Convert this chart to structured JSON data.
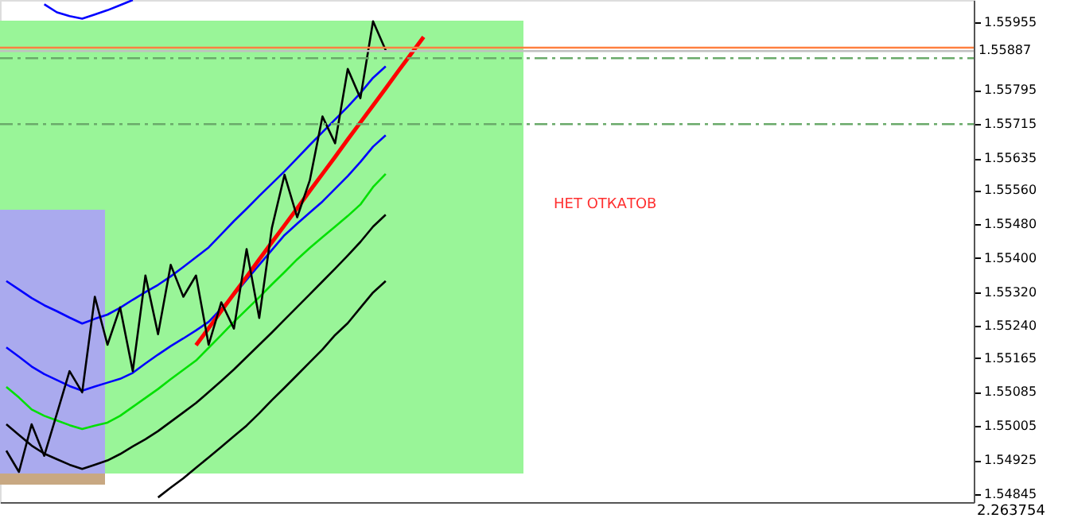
{
  "chart_data": {
    "type": "line",
    "ylim": [
      1.54826,
      1.56007
    ],
    "categories": [
      null,
      null,
      null,
      null,
      null,
      null,
      null,
      null,
      null,
      null,
      null,
      null,
      null,
      null,
      null,
      null,
      null,
      null,
      null,
      null,
      null,
      null,
      null,
      null,
      null,
      null,
      null,
      null,
      null,
      null,
      null,
      null,
      null,
      null,
      null,
      null,
      null,
      null,
      null,
      null,
      null,
      null,
      null,
      null,
      null,
      null,
      null,
      null,
      null,
      null,
      null,
      null,
      null,
      null,
      null,
      null,
      null,
      null,
      null,
      null,
      null,
      null,
      null,
      null,
      null,
      null,
      null,
      null,
      null,
      null,
      null,
      null,
      null,
      null,
      null,
      null,
      null
    ],
    "yticks": [
      1.55955,
      1.55795,
      1.55715,
      1.55635,
      {
        "value": 1.5556,
        "label": "1.55560"
      },
      {
        "value": 1.5548,
        "label": "1.55480"
      },
      {
        "value": 1.554,
        "label": "1.55400"
      },
      {
        "value": 1.5532,
        "label": "1.55320"
      },
      {
        "value": 1.5524,
        "label": "1.55240"
      },
      1.55165,
      1.55085,
      1.55005,
      1.54925,
      1.54845
    ],
    "tick_labels": "y",
    "grid": false,
    "series": [
      {
        "color": "#0000ff",
        "values": [
          null,
          null,
          null,
          1.55997,
          1.55978,
          1.55969,
          1.55963,
          1.55973,
          1.55983,
          1.55995,
          1.56007,
          null,
          null,
          null,
          null,
          null,
          null,
          null,
          null,
          null,
          null,
          null,
          null,
          null,
          null,
          null,
          null,
          null,
          null,
          null,
          null,
          null,
          null,
          null,
          null,
          null,
          null,
          null,
          null,
          null,
          null,
          null,
          null,
          null,
          null,
          null,
          null,
          null,
          null,
          null,
          null,
          null,
          null,
          null,
          null,
          null,
          null,
          null,
          null,
          null,
          null,
          null,
          null,
          null,
          null,
          null,
          null,
          null,
          null,
          null,
          null,
          null,
          null,
          null,
          null,
          null,
          null
        ]
      },
      {
        "color": "#0000ff",
        "values": [
          1.55346,
          1.55326,
          1.55306,
          1.55289,
          1.55275,
          1.5526,
          1.55246,
          1.55257,
          1.55267,
          1.55283,
          1.55302,
          1.5532,
          1.55337,
          1.55357,
          1.55379,
          1.55402,
          1.55425,
          1.55456,
          1.55487,
          1.55516,
          1.55546,
          1.55575,
          1.55604,
          1.55635,
          1.55666,
          1.55696,
          1.55726,
          1.55756,
          1.55788,
          1.55824,
          1.55851,
          null,
          null,
          null,
          null,
          null,
          null,
          null,
          null,
          null,
          null,
          null,
          null,
          null,
          null,
          null,
          null,
          null,
          null,
          null,
          null,
          null,
          null,
          null,
          null,
          null,
          null,
          null,
          null,
          null,
          null,
          null,
          null,
          null,
          null,
          null,
          null,
          null,
          null,
          null,
          null,
          null,
          null,
          null,
          null,
          null,
          null
        ]
      },
      {
        "color": "#0000ff",
        "values": [
          1.5519,
          1.55168,
          1.55145,
          1.55127,
          1.55113,
          1.55099,
          1.55088,
          1.55098,
          1.55107,
          1.55116,
          1.5513,
          1.55152,
          1.55173,
          1.55193,
          1.55211,
          1.5523,
          1.5525,
          1.55281,
          1.55313,
          1.55349,
          1.55384,
          1.55419,
          1.55454,
          1.55481,
          1.55507,
          1.55533,
          1.55563,
          1.55593,
          1.55626,
          1.55662,
          1.55689,
          null,
          null,
          null,
          null,
          null,
          null,
          null,
          null,
          null,
          null,
          null,
          null,
          null,
          null,
          null,
          null,
          null,
          null,
          null,
          null,
          null,
          null,
          null,
          null,
          null,
          null,
          null,
          null,
          null,
          null,
          null,
          null,
          null,
          null,
          null,
          null,
          null,
          null,
          null,
          null,
          null,
          null,
          null,
          null,
          null,
          null
        ]
      },
      {
        "color": "#00e000",
        "values": [
          1.55097,
          1.55072,
          1.55044,
          1.55029,
          1.55018,
          1.55007,
          1.54998,
          1.55006,
          1.55013,
          1.55029,
          1.5505,
          1.55071,
          1.55092,
          1.55115,
          1.55137,
          1.55159,
          1.55189,
          1.55219,
          1.5525,
          1.55279,
          1.55308,
          1.55338,
          1.55367,
          1.55397,
          1.55424,
          1.55449,
          1.55474,
          1.55499,
          1.55526,
          1.55567,
          1.55598,
          null,
          null,
          null,
          null,
          null,
          null,
          null,
          null,
          null,
          null,
          null,
          null,
          null,
          null,
          null,
          null,
          null,
          null,
          null,
          null,
          null,
          null,
          null,
          null,
          null,
          null,
          null,
          null,
          null,
          null,
          null,
          null,
          null,
          null,
          null,
          null,
          null,
          null,
          null,
          null,
          null,
          null,
          null,
          null,
          null,
          null
        ]
      },
      {
        "color": "#000000",
        "values": [
          1.55009,
          1.54984,
          1.54959,
          1.5494,
          1.54927,
          1.54914,
          1.54904,
          1.54914,
          1.54924,
          1.54939,
          1.54957,
          1.54974,
          1.54993,
          1.55015,
          1.55037,
          1.55059,
          1.55085,
          1.55111,
          1.55138,
          1.55167,
          1.55196,
          1.55225,
          1.55255,
          1.55285,
          1.55315,
          1.55345,
          1.55375,
          1.55406,
          1.55438,
          1.55474,
          1.55502,
          null,
          null,
          null,
          null,
          null,
          null,
          null,
          null,
          null,
          null,
          null,
          null,
          null,
          null,
          null,
          null,
          null,
          null,
          null,
          null,
          null,
          null,
          null,
          null,
          null,
          null,
          null,
          null,
          null,
          null,
          null,
          null,
          null,
          null,
          null,
          null,
          null,
          null,
          null,
          null,
          null,
          null,
          null,
          null,
          null,
          null
        ]
      },
      {
        "color": "#000000",
        "values": [
          null,
          null,
          null,
          null,
          null,
          null,
          null,
          null,
          null,
          null,
          null,
          null,
          1.54837,
          1.5486,
          1.54882,
          1.54907,
          1.54931,
          1.54956,
          1.54981,
          1.55006,
          1.55035,
          1.55066,
          1.55095,
          1.55125,
          1.55155,
          1.55185,
          1.55219,
          1.55247,
          1.55283,
          1.55319,
          1.55346,
          null,
          null,
          null,
          null,
          null,
          null,
          null,
          null,
          null,
          null,
          null,
          null,
          null,
          null,
          null,
          null,
          null,
          null,
          null,
          null,
          null,
          null,
          null,
          null,
          null,
          null,
          null,
          null,
          null,
          null,
          null,
          null,
          null,
          null,
          null,
          null,
          null,
          null,
          null,
          null,
          null,
          null,
          null,
          null,
          null,
          null
        ]
      },
      {
        "color": "#ff0000",
        "values": [
          null,
          null,
          null,
          null,
          null,
          null,
          null,
          null,
          null,
          null,
          null,
          null,
          null,
          null,
          null,
          1.55195,
          1.55235,
          1.55276,
          1.55316,
          1.55356,
          1.55397,
          1.55437,
          1.55477,
          1.55517,
          1.55558,
          1.55598,
          1.55638,
          1.55679,
          1.55719,
          1.55759,
          1.55799,
          1.5584,
          1.5588,
          1.5592,
          null,
          null,
          null,
          null,
          null,
          null,
          null,
          null,
          null,
          null,
          null,
          null,
          null,
          null,
          null,
          null,
          null,
          null,
          null,
          null,
          null,
          null,
          null,
          null,
          null,
          null,
          null,
          null,
          null,
          null,
          null,
          null,
          null,
          null,
          null,
          null,
          null,
          null,
          null,
          null,
          null,
          null,
          null
        ]
      },
      {
        "color": "#000000",
        "values": [
          1.54947,
          1.54897,
          1.55009,
          1.54935,
          1.55034,
          1.55134,
          1.55084,
          1.55309,
          1.55196,
          1.55284,
          1.55134,
          1.55359,
          1.55221,
          1.55384,
          1.55309,
          1.55359,
          1.55196,
          1.55296,
          1.55234,
          1.55421,
          1.55259,
          1.55471,
          1.55596,
          1.55496,
          1.55583,
          1.55733,
          1.5567,
          1.55845,
          1.55776,
          1.55957,
          1.55889,
          null,
          null,
          null,
          null,
          null,
          null,
          null,
          null,
          null,
          null,
          null,
          null,
          null,
          null,
          null,
          null,
          null,
          null,
          null,
          null,
          null,
          null,
          null,
          null,
          null,
          null,
          null,
          null,
          null,
          null,
          null,
          null,
          null,
          null,
          null,
          null,
          null,
          null,
          null,
          null,
          null,
          null,
          null,
          null,
          null,
          null
        ]
      }
    ],
    "ref_lines": [
      {
        "axis": "y",
        "value": 1.55895,
        "color": "#ff8040",
        "line_style": "solid"
      },
      {
        "axis": "y",
        "value": 1.55887,
        "color": "#c0c0c0",
        "line_style": "solid",
        "label": "1.55887"
      },
      {
        "axis": "y",
        "value": 1.5587,
        "color": "#6aaa6a",
        "line_style": "dashdot"
      },
      {
        "axis": "y",
        "value": 1.55715,
        "color": "#6aaa6a",
        "line_style": "dashdot"
      }
    ],
    "annotations": [
      "НЕТ ОТКАТОВ",
      "2.263754"
    ]
  }
}
